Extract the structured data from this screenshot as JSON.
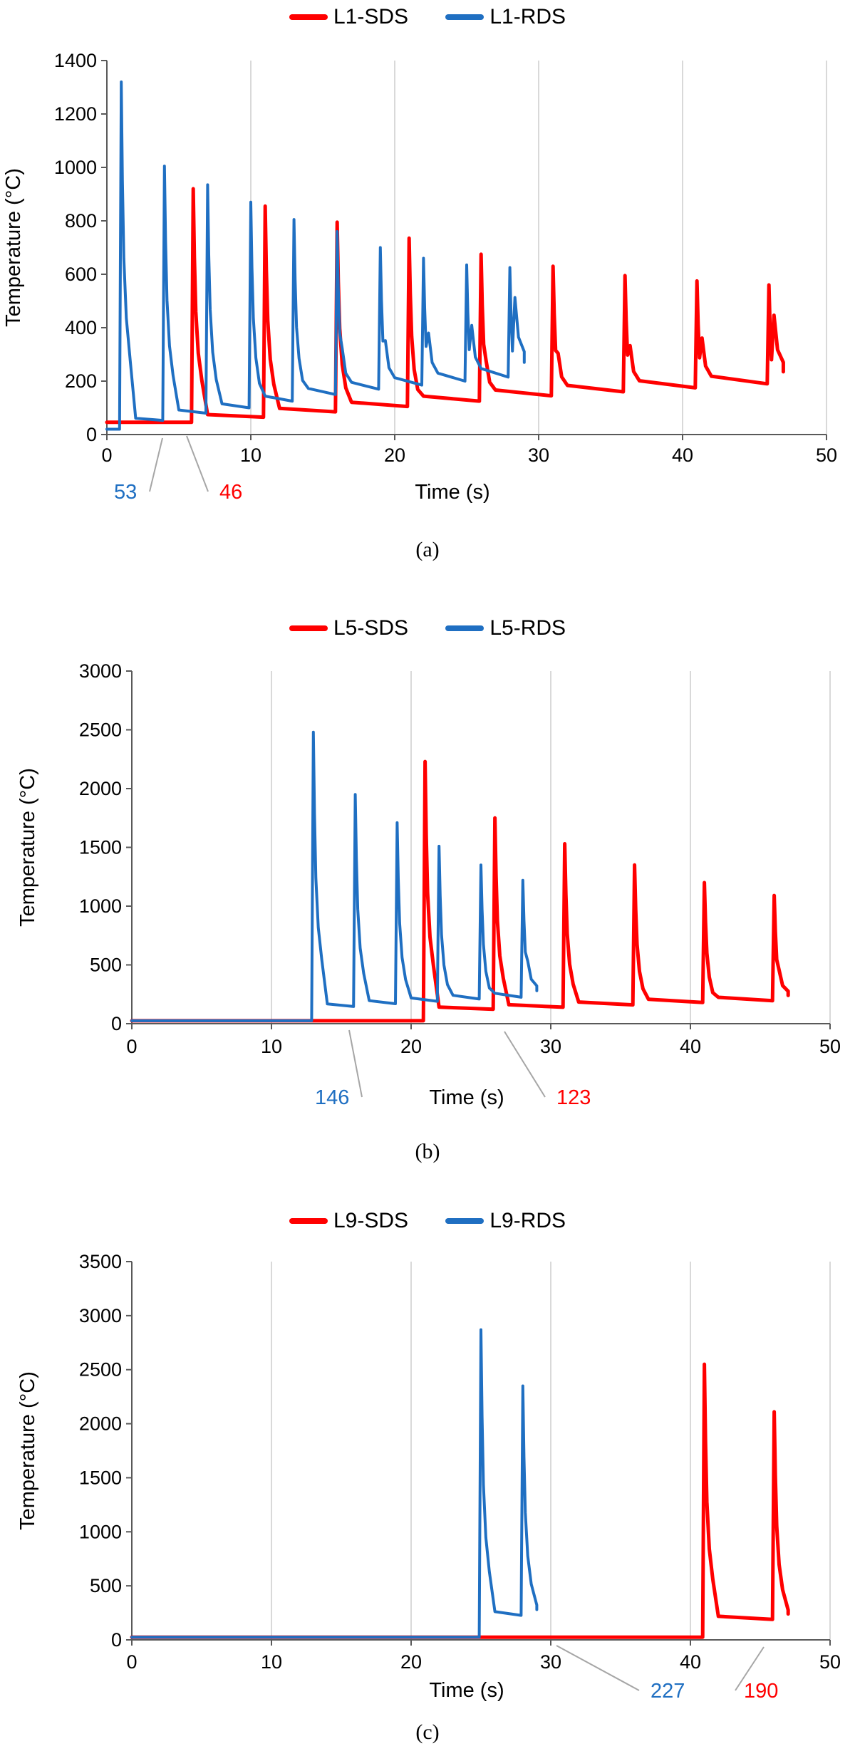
{
  "chart_data": [
    {
      "type": "line",
      "caption": "(a)",
      "xlabel": "Time (s)",
      "ylabel": "Temperature (°C)",
      "xlim": [
        0,
        50
      ],
      "ylim": [
        0,
        1400
      ],
      "xticks": [
        "0",
        "10",
        "20",
        "30",
        "40",
        "50"
      ],
      "yticks": [
        "0",
        "200",
        "400",
        "600",
        "800",
        "1000",
        "1200",
        "1400"
      ],
      "grid": "vertical",
      "legend": "top-center",
      "series": [
        {
          "name": "L1-SDS",
          "color": "#ff0000",
          "layer_start_times": [
            6,
            11,
            16,
            21,
            26,
            31,
            36,
            41,
            46
          ],
          "peak_temps": [
            920,
            855,
            795,
            735,
            675,
            630,
            595,
            575,
            560
          ],
          "interlayer_temps": [
            46,
            65,
            85,
            105,
            125,
            145,
            160,
            175,
            190
          ],
          "end_time": 47,
          "end_temp": 235
        },
        {
          "name": "L1-RDS",
          "color": "#1f6fc2",
          "layer_start_times": [
            1,
            4,
            7,
            10,
            13,
            16,
            19,
            22,
            25,
            28
          ],
          "peak_temps": [
            1320,
            1005,
            935,
            870,
            805,
            760,
            700,
            660,
            635,
            625
          ],
          "interlayer_temps": [
            20,
            53,
            80,
            100,
            125,
            150,
            170,
            185,
            200,
            215
          ],
          "end_time": 29,
          "end_temp": 270
        }
      ],
      "annotations": [
        {
          "text": "53",
          "color": "#1f6fc2",
          "x": 4,
          "y": 53
        },
        {
          "text": "46",
          "color": "#ff0000",
          "x": 6,
          "y": 46
        }
      ]
    },
    {
      "type": "line",
      "caption": "(b)",
      "xlabel": "Time (s)",
      "ylabel": "Temperature (°C)",
      "xlim": [
        0,
        50
      ],
      "ylim": [
        0,
        3000
      ],
      "xticks": [
        "0",
        "10",
        "20",
        "30",
        "40",
        "50"
      ],
      "yticks": [
        "0",
        "500",
        "1000",
        "1500",
        "2000",
        "2500",
        "3000"
      ],
      "grid": "vertical",
      "legend": "top-center",
      "series": [
        {
          "name": "L5-SDS",
          "color": "#ff0000",
          "layer_start_times": [
            21,
            26,
            31,
            36,
            41,
            46
          ],
          "peak_temps": [
            2230,
            1750,
            1530,
            1350,
            1200,
            1090
          ],
          "interlayer_temps": [
            25,
            123,
            140,
            160,
            180,
            195
          ],
          "end_time": 47,
          "end_temp": 240
        },
        {
          "name": "L5-RDS",
          "color": "#1f6fc2",
          "layer_start_times": [
            13,
            16,
            19,
            22,
            25,
            28
          ],
          "peak_temps": [
            2480,
            1950,
            1710,
            1510,
            1350,
            1220
          ],
          "interlayer_temps": [
            25,
            146,
            170,
            190,
            210,
            225
          ],
          "end_time": 29,
          "end_temp": 280
        }
      ],
      "annotations": [
        {
          "text": "146",
          "color": "#1f6fc2",
          "x": 16,
          "y": 146
        },
        {
          "text": "123",
          "color": "#ff0000",
          "x": 26,
          "y": 123
        }
      ]
    },
    {
      "type": "line",
      "caption": "(c)",
      "xlabel": "Time (s)",
      "ylabel": "Temperature (°C)",
      "xlim": [
        0,
        50
      ],
      "ylim": [
        0,
        3500
      ],
      "xticks": [
        "0",
        "10",
        "20",
        "30",
        "40",
        "50"
      ],
      "yticks": [
        "0",
        "500",
        "1000",
        "1500",
        "2000",
        "2500",
        "3000",
        "3500"
      ],
      "grid": "vertical",
      "legend": "top-center",
      "series": [
        {
          "name": "L9-SDS",
          "color": "#ff0000",
          "layer_start_times": [
            41,
            46
          ],
          "peak_temps": [
            2550,
            2110
          ],
          "interlayer_temps": [
            25,
            190
          ],
          "end_time": 47,
          "end_temp": 240
        },
        {
          "name": "L9-RDS",
          "color": "#1f6fc2",
          "layer_start_times": [
            25,
            28
          ],
          "peak_temps": [
            2870,
            2350
          ],
          "interlayer_temps": [
            25,
            227
          ],
          "end_time": 29,
          "end_temp": 280
        }
      ],
      "annotations": [
        {
          "text": "227",
          "color": "#1f6fc2",
          "x": 28,
          "y": 227
        },
        {
          "text": "190",
          "color": "#ff0000",
          "x": 46,
          "y": 190
        }
      ]
    }
  ]
}
